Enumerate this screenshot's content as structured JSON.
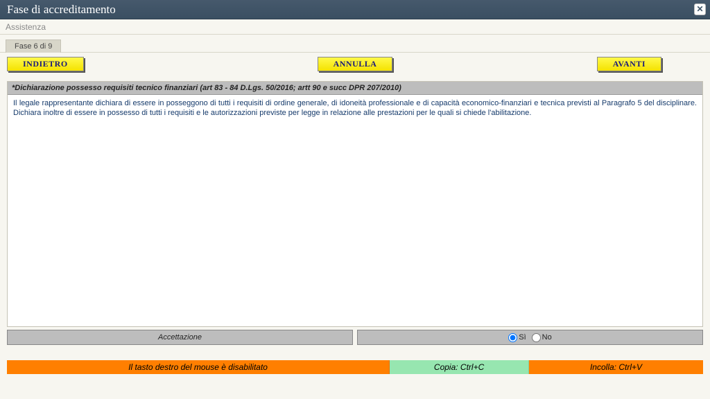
{
  "window": {
    "title": "Fase di accreditamento"
  },
  "menu": {
    "assistance": "Assistenza"
  },
  "tab": {
    "label": "Fase 6 di 9"
  },
  "nav": {
    "back": "INDIETRO",
    "cancel": "ANNULLA",
    "next": "AVANTI"
  },
  "declaration": {
    "header": "*Dichiarazione possesso requisiti tecnico finanziari (art 83 - 84 D.Lgs. 50/2016; artt 90 e succ DPR 207/2010)",
    "body": "Il legale rappresentante dichiara di essere in posseggono di tutti i requisiti di ordine generale, di idoneità professionale e di capacità economico-finanziari e tecnica previsti al Paragrafo 5 del disciplinare. Dichiara inoltre di essere in possesso di tutti i requisiti e le autorizzazioni previste per legge in relazione alle prestazioni per le quali si chiede l'abilitazione."
  },
  "accept": {
    "label": "Accettazione",
    "yes": "Sì",
    "no": "No",
    "selected": "yes"
  },
  "status": {
    "s1": "Il tasto destro del mouse è disabilitato",
    "s2": "Copia: Ctrl+C",
    "s3": "Incolla: Ctrl+V"
  },
  "colors": {
    "titlebar": "#3e5468",
    "accent_yellow": "#f4e200",
    "status_orange": "#ff7f00",
    "status_green": "#97e6b0",
    "panel_grey": "#bdbdbd"
  }
}
